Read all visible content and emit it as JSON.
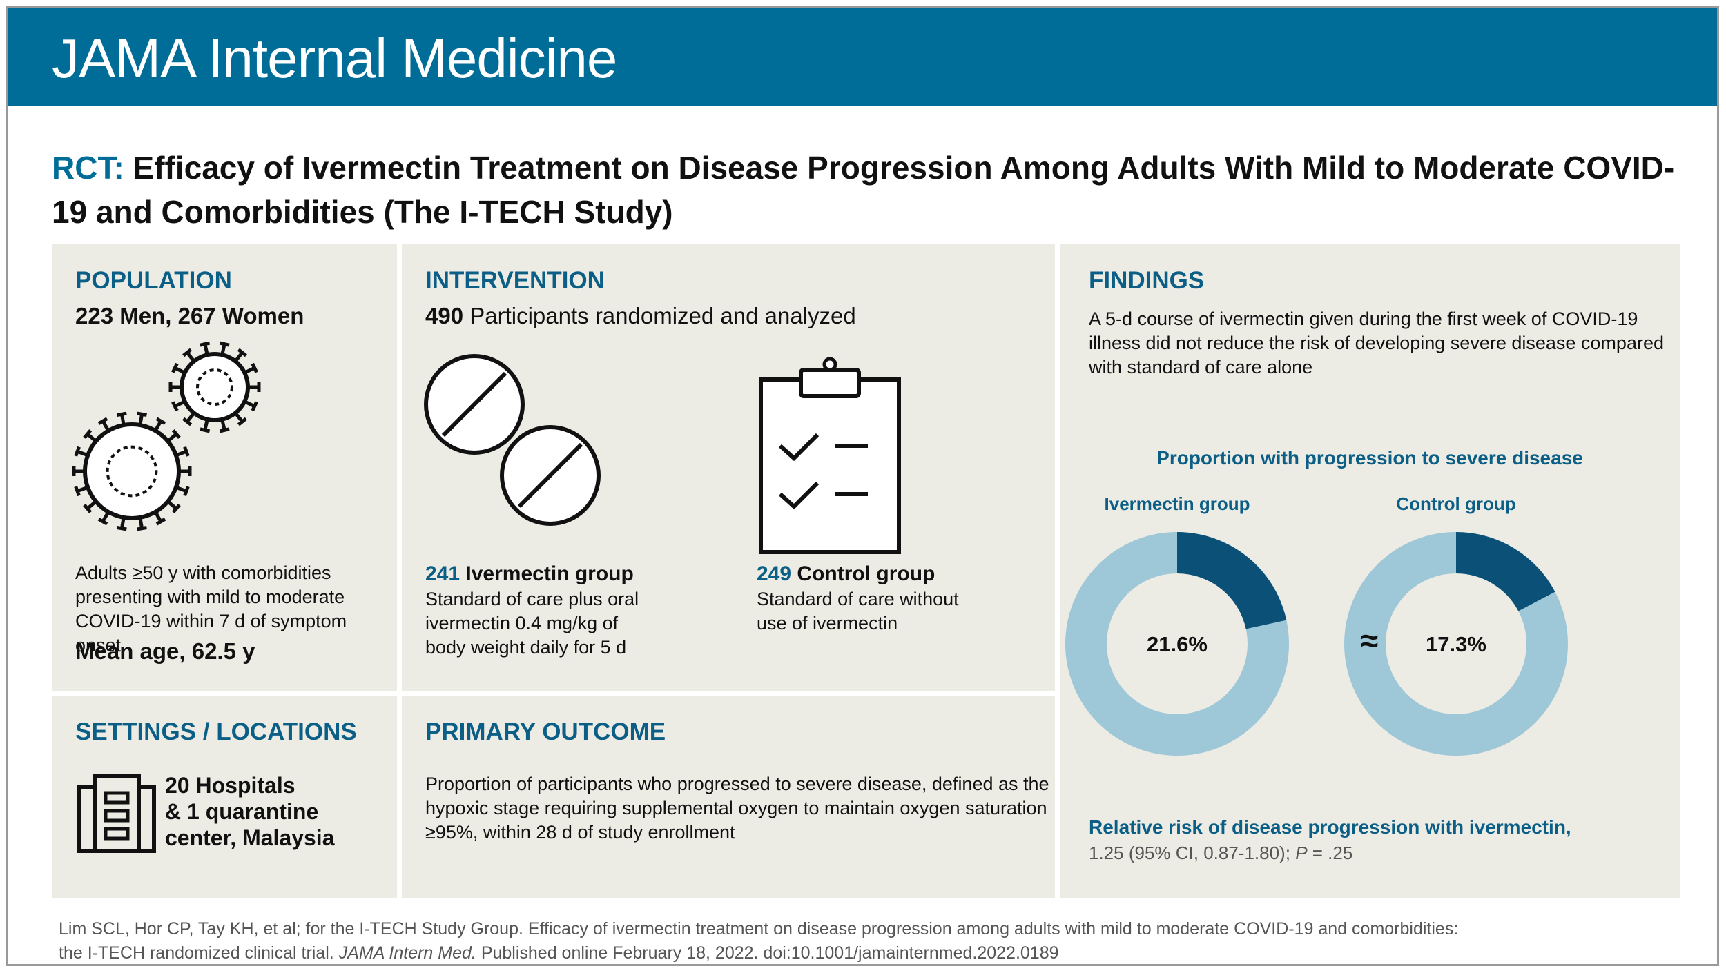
{
  "header": {
    "journal": "JAMA Internal Medicine"
  },
  "title": {
    "prefix": "RCT:",
    "text": "Efficacy of Ivermectin Treatment on Disease Progression Among Adults With Mild to Moderate COVID-19 and Comorbidities (The I-TECH Study)"
  },
  "population": {
    "heading": "POPULATION",
    "counts": "223 Men, 267 Women",
    "desc_lines": [
      "Adults ≥50 y with comorbidities",
      "presenting with mild to moderate",
      "COVID-19 within 7 d of symptom onset"
    ],
    "mean_age": "Mean age, 62.5 y",
    "icon": "virus-icon"
  },
  "intervention": {
    "heading": "INTERVENTION",
    "count": "490",
    "count_label": "Participants randomized and analyzed",
    "ivermectin": {
      "count": "241",
      "label": "Ivermectin group",
      "desc_lines": [
        "Standard of care plus oral",
        "ivermectin 0.4 mg/kg of",
        "body weight daily for 5 d"
      ],
      "icon": "pill-icon"
    },
    "control": {
      "count": "249",
      "label": "Control group",
      "desc_lines": [
        "Standard of care without",
        "use of ivermectin"
      ],
      "icon": "clipboard-checklist-icon"
    }
  },
  "settings": {
    "heading": "SETTINGS / LOCATIONS",
    "lines": [
      "20 Hospitals",
      "& 1 quarantine",
      "center, Malaysia"
    ],
    "icon": "building-icon"
  },
  "primary_outcome": {
    "heading": "PRIMARY OUTCOME",
    "lines": [
      "Proportion of participants who progressed to severe disease, defined as the",
      "hypoxic stage requiring supplemental oxygen to maintain oxygen saturation",
      "≥95%, within 28 d of study enrollment"
    ]
  },
  "findings": {
    "heading": "FINDINGS",
    "lines": [
      "A 5-d course of ivermectin given during the first week of COVID-19",
      "illness did not reduce the risk of developing severe disease compared",
      "with standard of care alone"
    ],
    "rr_title": "Relative risk of disease progression with ivermectin,",
    "rr_value": "1.25 (95% CI, 0.87-1.80);",
    "rr_p_label": "P",
    "rr_p_value": " = .25",
    "approx_symbol": "≈"
  },
  "chart_data": {
    "type": "pie",
    "title": "Proportion with progression to severe disease",
    "series": [
      {
        "name": "Ivermectin group",
        "value": 21.6,
        "label": "21.6%"
      },
      {
        "name": "Control group",
        "value": 17.3,
        "label": "17.3%"
      }
    ],
    "colors": {
      "progressed": "#0b5077",
      "not_progressed": "#9ec7d8"
    }
  },
  "citation": {
    "line1": "Lim SCL, Hor CP, Tay KH, et al; for the I-TECH Study Group. Efficacy of ivermectin treatment on disease progression among adults with mild to moderate COVID-19 and comorbidities:",
    "line2_pre": "the I-TECH randomized clinical trial.",
    "line2_journal": "JAMA Intern Med.",
    "line2_post": "Published online February 18, 2022. doi:10.1001/jamainternmed.2022.0189"
  },
  "colors": {
    "brand": "#006d98",
    "heading": "#0b5e86",
    "panel": "#ecebe4"
  }
}
